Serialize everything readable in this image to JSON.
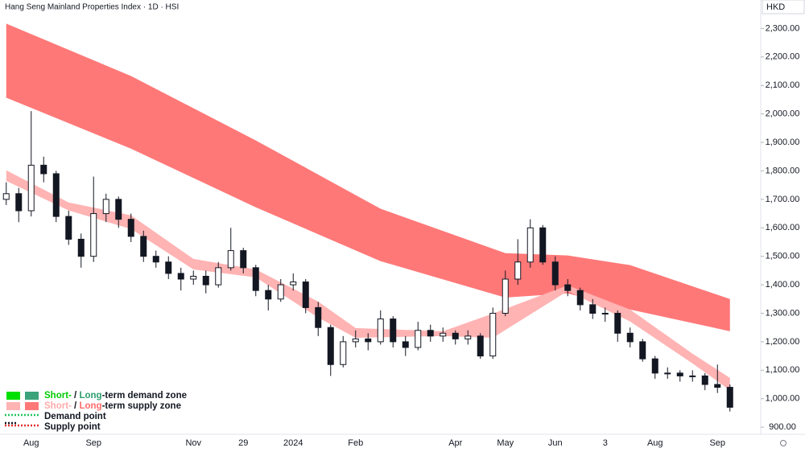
{
  "chart_data": {
    "type": "candlestick",
    "title": "Hang Seng Mainland Properties Index · 1D · HSI",
    "currency": "HKD",
    "categories": [
      null,
      null,
      "Aug",
      null,
      null,
      null,
      null,
      "Sep",
      null,
      null,
      null,
      null,
      null,
      null,
      null,
      "Nov",
      null,
      null,
      null,
      "29",
      null,
      null,
      null,
      "2024",
      null,
      null,
      null,
      null,
      "Feb",
      null,
      null,
      null,
      null,
      null,
      null,
      null,
      "Apr",
      null,
      null,
      null,
      "May",
      null,
      null,
      null,
      "Jun",
      null,
      null,
      null,
      "3",
      null,
      null,
      null,
      "Aug",
      null,
      null,
      null,
      null,
      "Sep",
      null
    ],
    "open": [
      1700,
      1720,
      1660,
      1820,
      1790,
      1640,
      1560,
      1500,
      1650,
      1700,
      1630,
      1570,
      1500,
      1480,
      1440,
      1420,
      1430,
      1400,
      1460,
      1520,
      1460,
      1380,
      1350,
      1400,
      1410,
      1320,
      1250,
      1120,
      1200,
      1210,
      1200,
      1280,
      1200,
      1180,
      1240,
      1220,
      1230,
      1210,
      1220,
      1150,
      1300,
      1420,
      1480,
      1600,
      1480,
      1400,
      1380,
      1330,
      1300,
      1300,
      1230,
      1200,
      1140,
      1090,
      1090,
      1080,
      1080,
      1050,
      1040
    ],
    "high": [
      1760,
      1740,
      2010,
      1850,
      1800,
      1660,
      1580,
      1780,
      1720,
      1710,
      1650,
      1590,
      1520,
      1500,
      1460,
      1450,
      1450,
      1480,
      1600,
      1530,
      1470,
      1400,
      1420,
      1440,
      1420,
      1340,
      1260,
      1220,
      1240,
      1230,
      1310,
      1290,
      1220,
      1270,
      1260,
      1250,
      1240,
      1240,
      1230,
      1320,
      1450,
      1560,
      1630,
      1610,
      1500,
      1420,
      1390,
      1350,
      1320,
      1310,
      1250,
      1210,
      1150,
      1110,
      1100,
      1100,
      1090,
      1120,
      1050
    ],
    "low": [
      1680,
      1620,
      1640,
      1760,
      1620,
      1540,
      1460,
      1480,
      1620,
      1600,
      1550,
      1480,
      1460,
      1420,
      1380,
      1400,
      1370,
      1390,
      1450,
      1440,
      1360,
      1310,
      1340,
      1380,
      1300,
      1220,
      1080,
      1110,
      1180,
      1170,
      1190,
      1180,
      1150,
      1170,
      1200,
      1200,
      1190,
      1190,
      1140,
      1140,
      1290,
      1400,
      1460,
      1470,
      1380,
      1360,
      1310,
      1280,
      1270,
      1200,
      1180,
      1130,
      1070,
      1070,
      1060,
      1060,
      1030,
      1020,
      955
    ],
    "close": [
      1720,
      1660,
      1820,
      1790,
      1640,
      1560,
      1500,
      1650,
      1700,
      1630,
      1570,
      1500,
      1480,
      1440,
      1420,
      1430,
      1400,
      1460,
      1520,
      1460,
      1380,
      1350,
      1400,
      1410,
      1320,
      1250,
      1120,
      1200,
      1210,
      1200,
      1280,
      1200,
      1180,
      1240,
      1220,
      1230,
      1210,
      1220,
      1150,
      1300,
      1420,
      1480,
      1600,
      1480,
      1400,
      1380,
      1330,
      1300,
      1300,
      1230,
      1200,
      1140,
      1090,
      1090,
      1080,
      1080,
      1050,
      1040,
      970
    ],
    "up_color": "#ffffff",
    "down_color": "#131722",
    "zones": [
      {
        "color": "#ff7878",
        "x": [
          0,
          10,
          20,
          30,
          40,
          45,
          50,
          58
        ],
        "upper": [
          2317,
          2133,
          1907,
          1667,
          1511,
          1503,
          1469,
          1350
        ],
        "lower": [
          2057,
          1878,
          1672,
          1483,
          1355,
          1370,
          1313,
          1237
        ]
      },
      {
        "color": "#ffb3b3",
        "x": [
          0,
          5,
          10,
          15,
          20,
          25,
          28,
          35,
          39,
          45,
          50,
          55,
          58
        ],
        "upper": [
          1802,
          1689,
          1644,
          1491,
          1454,
          1341,
          1248,
          1237,
          1299,
          1398,
          1313,
          1158,
          1073
        ],
        "lower": [
          1765,
          1661,
          1596,
          1454,
          1426,
          1285,
          1214,
          1220,
          1214,
          1378,
          1271,
          1124,
          1030
        ]
      }
    ],
    "ylim": [
      875,
      2400
    ],
    "yticks": [
      {
        "value": 900,
        "label": "900.00"
      },
      {
        "value": 1000,
        "label": "1,000.00"
      },
      {
        "value": 1100,
        "label": "1,100.00"
      },
      {
        "value": 1200,
        "label": "1,200.00"
      },
      {
        "value": 1300,
        "label": "1,300.00"
      },
      {
        "value": 1400,
        "label": "1,400.00"
      },
      {
        "value": 1500,
        "label": "1,500.00"
      },
      {
        "value": 1600,
        "label": "1,600.00"
      },
      {
        "value": 1700,
        "label": "1,700.00"
      },
      {
        "value": 1800,
        "label": "1,800.00"
      },
      {
        "value": 1900,
        "label": "1,900.00"
      },
      {
        "value": 2000,
        "label": "2,000.00"
      },
      {
        "value": 2100,
        "label": "2,100.00"
      },
      {
        "value": 2200,
        "label": "2,200.00"
      },
      {
        "value": 2300,
        "label": "2,300.00"
      }
    ],
    "legend": [
      {
        "parts": [
          "Short-",
          " / ",
          "Long",
          "-term demand zone"
        ],
        "colors": [
          "#00cc00",
          "#131722",
          "#2e9e6e",
          "#131722"
        ],
        "swatches": [
          "#00e000",
          "#3aa37a"
        ]
      },
      {
        "parts": [
          "Short-",
          " / ",
          "Long",
          "-term supply zone"
        ],
        "colors": [
          "#ffaaaa",
          "#131722",
          "#ff6b6b",
          "#131722"
        ],
        "swatches": [
          "#ffb3b3",
          "#ff7878"
        ]
      },
      {
        "parts": [
          "Demand point"
        ],
        "colors": [
          "#131722"
        ],
        "line": "#22c55e"
      },
      {
        "parts": [
          "Supply point"
        ],
        "colors": [
          "#131722"
        ],
        "line": "#e03030"
      }
    ]
  }
}
